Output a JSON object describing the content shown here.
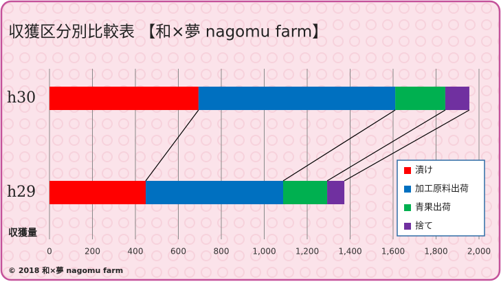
{
  "chart_data": {
    "type": "stacked-bar-horizontal",
    "title": "収獲区分別比較表 【和×夢 nagomu farm】",
    "categories": [
      "h30",
      "h29"
    ],
    "series": [
      {
        "name": "漬け",
        "color": "#ff0000",
        "values": [
          694,
          448
        ]
      },
      {
        "name": "加工原料出荷",
        "color": "#0070c0",
        "values": [
          916,
          640
        ]
      },
      {
        "name": "青果出荷",
        "color": "#00b050",
        "values": [
          233,
          205
        ]
      },
      {
        "name": "捨て",
        "color": "#7030a0",
        "values": [
          112,
          80
        ]
      }
    ],
    "x_label": "収獲量",
    "xlim": [
      0,
      2000
    ],
    "xticks": [
      0,
      200,
      400,
      600,
      800,
      {
        "value": 1000,
        "label": "1,000"
      },
      {
        "value": 1200,
        "label": "1,200"
      },
      {
        "value": 1400,
        "label": "1,400"
      },
      {
        "value": 1600,
        "label": "1,600"
      },
      {
        "value": 1800,
        "label": "1,800"
      },
      {
        "value": 2000,
        "label": "2,000"
      }
    ],
    "grid": true,
    "legend": "lower-right",
    "footer": "© 2018 和×夢 nagomu farm"
  }
}
